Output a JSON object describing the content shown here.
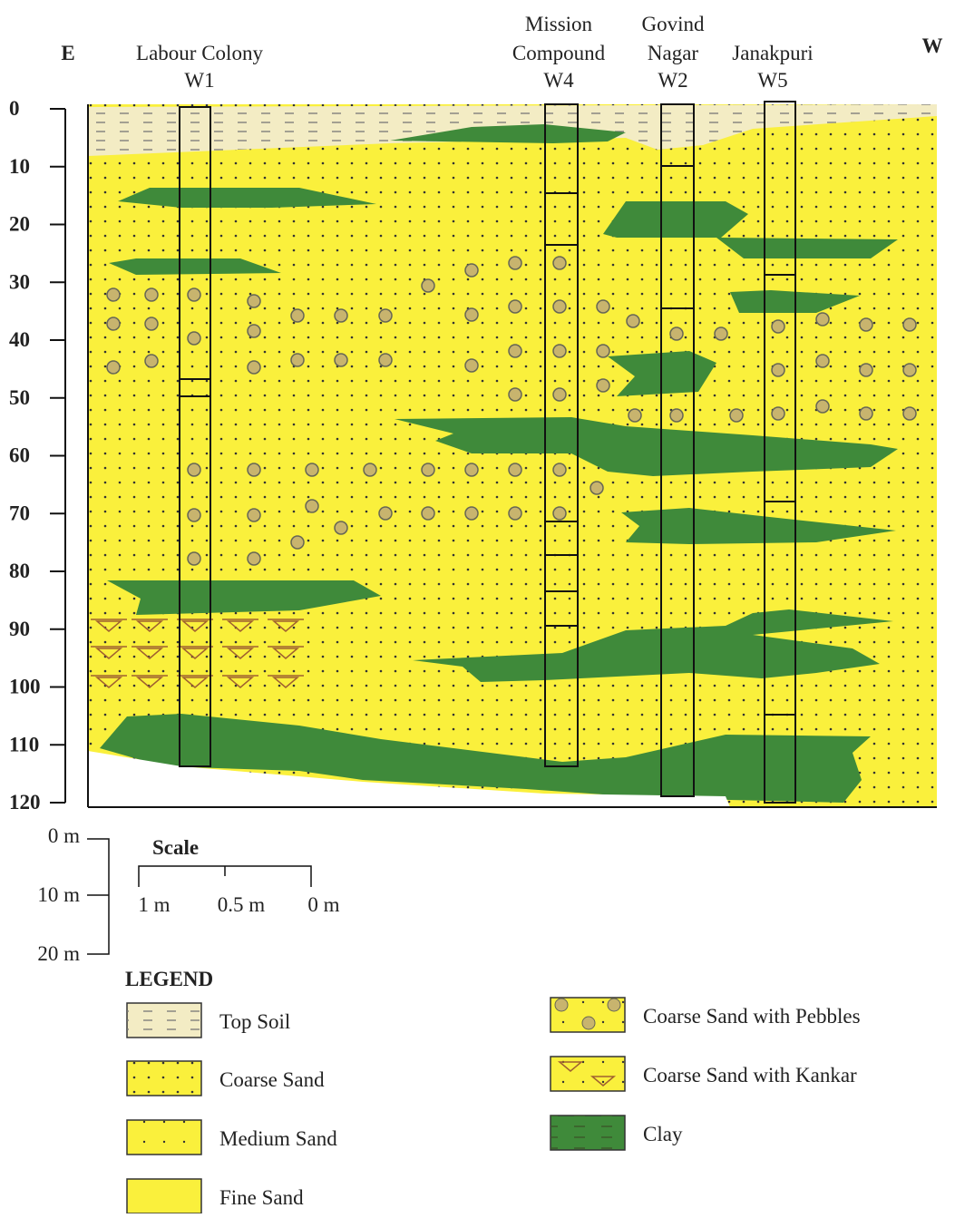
{
  "directions": {
    "east": "E",
    "west": "W"
  },
  "wells": [
    {
      "label_lines": [
        "Labour Colony"
      ],
      "id": "W1"
    },
    {
      "label_lines": [
        "Mission",
        "Compound"
      ],
      "id": "W4"
    },
    {
      "label_lines": [
        "Govind",
        "Nagar"
      ],
      "id": "W2"
    },
    {
      "label_lines": [
        "Janakpuri"
      ],
      "id": "W5"
    }
  ],
  "depth_ticks": [
    0,
    10,
    20,
    30,
    40,
    50,
    60,
    70,
    80,
    90,
    100,
    110,
    120
  ],
  "scale": {
    "title": "Scale",
    "vertical": [
      "0 m",
      "10 m",
      "20 m"
    ],
    "horizontal": [
      "1 m",
      "0.5 m",
      "0 m"
    ]
  },
  "legend": {
    "title": "LEGEND",
    "items": [
      "Top Soil",
      "Coarse Sand",
      "Medium Sand",
      "Fine Sand",
      "Coarse Sand with Pebbles",
      "Coarse Sand with Kankar",
      "Clay"
    ]
  }
}
